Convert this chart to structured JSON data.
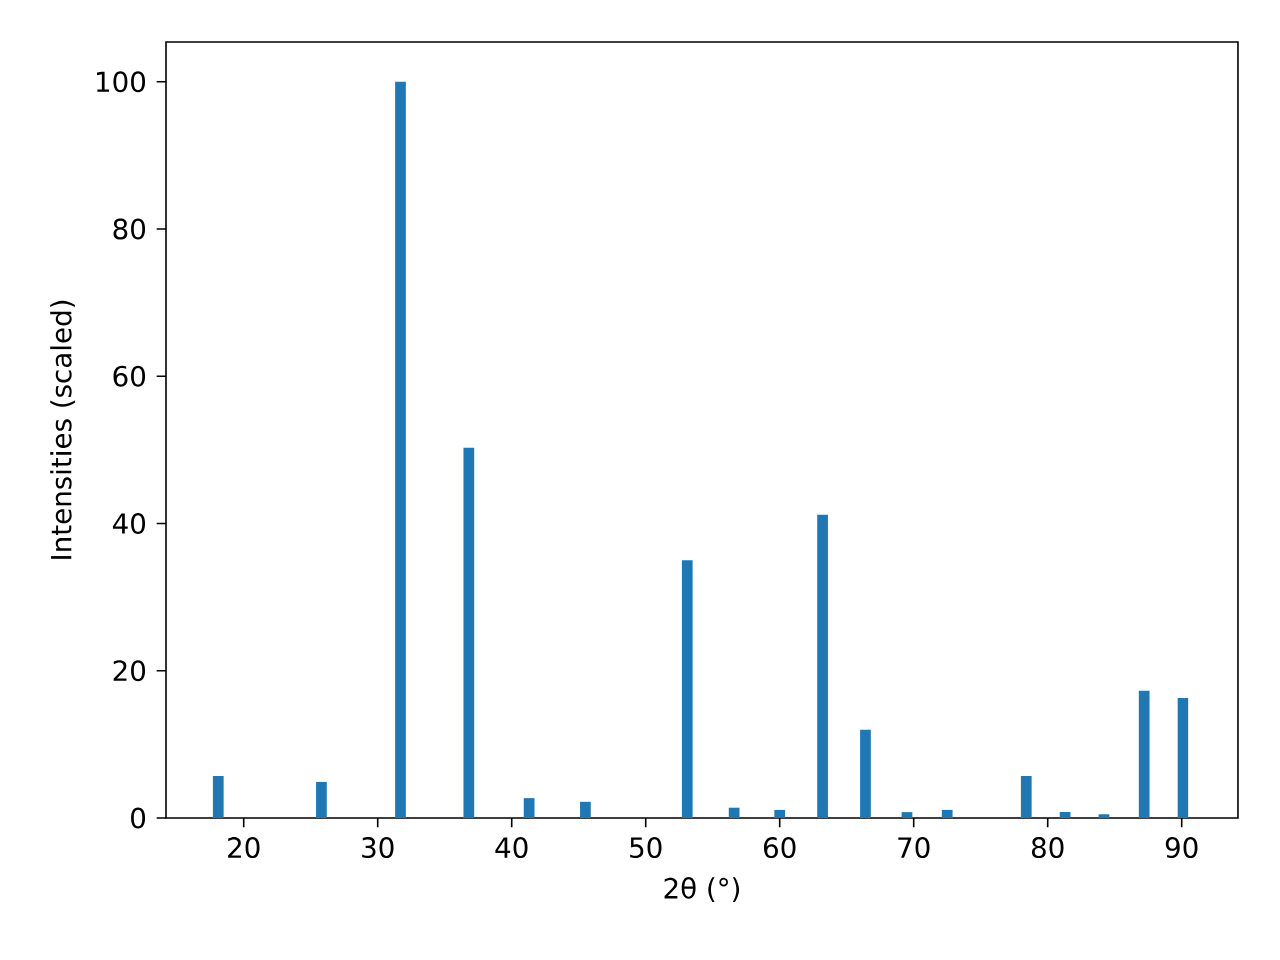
{
  "chart_data": {
    "type": "bar",
    "xlabel": "2θ (°)",
    "ylabel": "Intensities (scaled)",
    "x": [
      18.1,
      25.8,
      31.7,
      36.8,
      41.3,
      45.5,
      53.1,
      56.6,
      60.0,
      63.2,
      66.4,
      69.5,
      72.5,
      78.4,
      81.3,
      84.2,
      87.2,
      90.1
    ],
    "values": [
      5.7,
      4.9,
      100,
      50.3,
      2.7,
      2.2,
      35,
      1.4,
      1.1,
      41.2,
      12,
      0.8,
      1.1,
      5.7,
      0.8,
      0.5,
      17.3,
      16.3
    ],
    "color": "#1f77b4",
    "xlim": [
      14.2,
      94.2
    ],
    "ylim": [
      0,
      105.4
    ],
    "xticks": [
      20,
      30,
      40,
      50,
      60,
      70,
      80,
      90
    ],
    "yticks": [
      0,
      20,
      40,
      60,
      80,
      100
    ]
  }
}
